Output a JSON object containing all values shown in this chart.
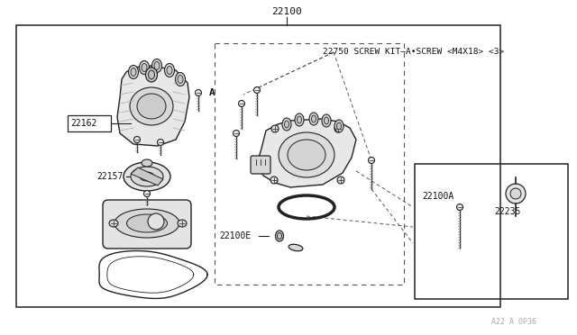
{
  "bg": "#ffffff",
  "lc": "#222222",
  "dc": "#555555",
  "fc_light": "#e8e8e8",
  "fc_mid": "#d4d4d4",
  "label_22100": "22100",
  "label_22750": "22750 SCREW KIT—A•SCREW <M4X18> <3>",
  "label_A": "A",
  "label_22162": "22162",
  "label_22157": "22157",
  "label_22100E": "22100E",
  "label_22100A": "22100A",
  "label_22235": "22235",
  "watermark": "A22 A 0P36"
}
